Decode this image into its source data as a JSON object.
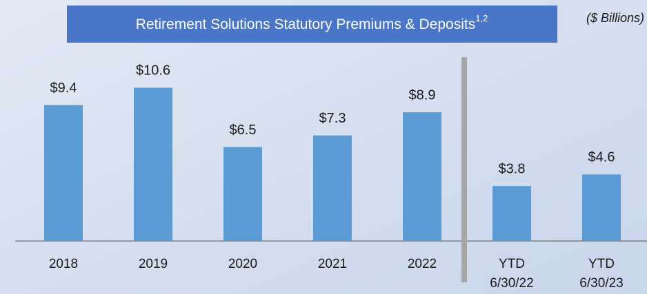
{
  "chart_data": {
    "type": "bar",
    "title": "Retirement Solutions Statutory Premiums & Deposits",
    "title_superscript": "1,2",
    "units": "($ Billions)",
    "categories": [
      "2018",
      "2019",
      "2020",
      "2021",
      "2022",
      "YTD 6/30/22",
      "YTD 6/30/23"
    ],
    "values": [
      9.4,
      10.6,
      6.5,
      7.3,
      8.9,
      3.8,
      4.6
    ],
    "value_labels": [
      "$9.4",
      "$10.6",
      "$6.5",
      "$7.3",
      "$8.9",
      "$3.8",
      "$4.6"
    ],
    "color": "#5b9bd5"
  }
}
